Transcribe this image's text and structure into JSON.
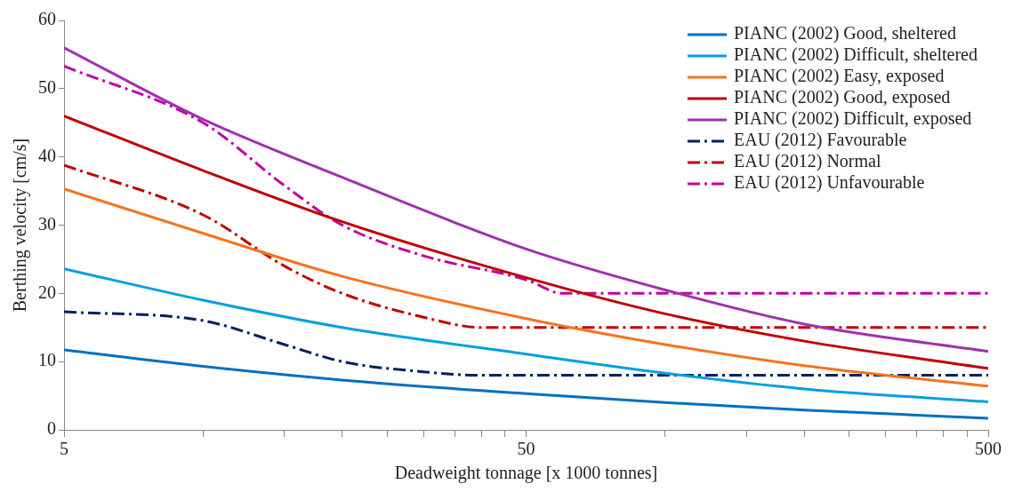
{
  "chart_data": {
    "type": "line",
    "xlabel": "Deadweight tonnage [x 1000 tonnes]",
    "ylabel": "Berthing velocity [cm/s]",
    "log": "x",
    "xlim": [
      5,
      500
    ],
    "xticks": [
      5,
      {
        "value": 10,
        "label": null
      },
      {
        "value": 15,
        "label": null
      },
      {
        "value": 20,
        "label": null
      },
      {
        "value": 25,
        "label": null
      },
      {
        "value": 30,
        "label": null
      },
      {
        "value": 35,
        "label": null
      },
      {
        "value": 40,
        "label": null
      },
      {
        "value": 45,
        "label": null
      },
      50,
      {
        "value": 100,
        "label": null
      },
      {
        "value": 150,
        "label": null
      },
      {
        "value": 200,
        "label": null
      },
      {
        "value": 250,
        "label": null
      },
      {
        "value": 300,
        "label": null
      },
      {
        "value": 350,
        "label": null
      },
      {
        "value": 400,
        "label": null
      },
      {
        "value": 450,
        "label": null
      },
      500
    ],
    "ylim": [
      0,
      60
    ],
    "yticks": [
      0,
      10,
      20,
      30,
      40,
      50,
      60
    ],
    "grid": false,
    "legend": "top right",
    "marker": "none",
    "x": [
      5,
      10,
      20,
      50,
      100,
      200,
      500
    ],
    "series": [
      {
        "name": "PIANC (2002) Good, sheltered",
        "color": "#0070c0",
        "line_style": "solid",
        "values": [
          11.7,
          9.3,
          7.3,
          5.3,
          4.0,
          2.9,
          1.7
        ]
      },
      {
        "name": "PIANC (2002) Difficult, sheltered",
        "color": "#00a0e0",
        "line_style": "solid",
        "values": [
          23.6,
          19,
          15,
          11.1,
          8.3,
          6,
          4.1
        ]
      },
      {
        "name": "PIANC (2002) Easy, exposed",
        "color": "#f5731e",
        "line_style": "solid",
        "values": [
          35.3,
          28.8,
          22.5,
          16.3,
          12.5,
          9.4,
          6.4
        ]
      },
      {
        "name": "PIANC (2002) Good, exposed",
        "color": "#c00000",
        "line_style": "solid",
        "values": [
          46,
          38,
          30.5,
          22.3,
          17,
          13,
          9
        ]
      },
      {
        "name": "PIANC (2002) Difficult, exposed",
        "color": "#a030b0",
        "line_style": "solid",
        "values": [
          56,
          45.5,
          37,
          26.5,
          20.5,
          15.5,
          11.5
        ]
      },
      {
        "name": "EAU (2012) Favourable",
        "color": "#002060",
        "line_style": "dashed",
        "x": [
          5,
          10,
          15,
          20,
          30,
          40,
          50,
          500
        ],
        "values": [
          17.3,
          16,
          12.5,
          10,
          8.5,
          8,
          8,
          8
        ]
      },
      {
        "name": "EAU (2012) Normal",
        "color": "#c00000",
        "line_style": "dashed",
        "x": [
          5,
          10,
          15,
          20,
          30,
          40,
          50,
          500
        ],
        "values": [
          38.8,
          31.5,
          24,
          20,
          16.5,
          15,
          15,
          15
        ]
      },
      {
        "name": "EAU (2012) Unfavourable",
        "color": "#c000a0",
        "line_style": "dashed",
        "x": [
          5,
          10,
          15,
          20,
          30,
          50,
          60,
          500
        ],
        "values": [
          53.3,
          45,
          35.8,
          30,
          25.5,
          22,
          20,
          20
        ]
      }
    ]
  }
}
